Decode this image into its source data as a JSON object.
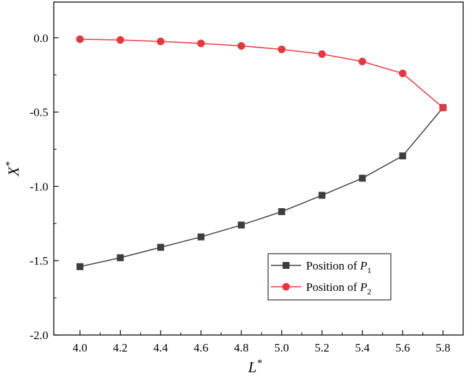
{
  "chart_data": {
    "type": "line",
    "title": "",
    "xlabel": "L",
    "xlabel_sup": "*",
    "ylabel": "X",
    "ylabel_sup": "*",
    "xlim": [
      3.87,
      5.9
    ],
    "ylim": [
      -2.0,
      0.24
    ],
    "x": [
      4.0,
      4.2,
      4.4,
      4.6,
      4.8,
      5.0,
      5.2,
      5.4,
      5.6,
      5.8
    ],
    "x_ticks": [
      "4.0",
      "4.2",
      "4.4",
      "4.6",
      "4.8",
      "5.0",
      "5.2",
      "5.4",
      "5.6",
      "5.8"
    ],
    "y_ticks": [
      {
        "value": 0.0,
        "label": "0.0"
      },
      {
        "value": -0.5,
        "label": "-0.5"
      },
      {
        "value": -1.0,
        "label": "-1.0"
      },
      {
        "value": -1.5,
        "label": "-1.5"
      },
      {
        "value": -2.0,
        "label": "-2.0"
      }
    ],
    "grid": false,
    "legend_position": "bottom-right",
    "series": [
      {
        "name_prefix": "Position of ",
        "name_var": "P",
        "name_sub": "1",
        "color": "#3d3d3d",
        "marker": "square",
        "values": [
          -1.54,
          -1.48,
          -1.41,
          -1.34,
          -1.26,
          -1.17,
          -1.06,
          -0.945,
          -0.795,
          -0.47
        ]
      },
      {
        "name_prefix": "Position of ",
        "name_var": "P",
        "name_sub": "2",
        "color": "#e8363c",
        "marker": "circle",
        "values": [
          -0.01,
          -0.015,
          -0.025,
          -0.038,
          -0.055,
          -0.078,
          -0.11,
          -0.16,
          -0.24,
          -0.47
        ]
      }
    ]
  }
}
